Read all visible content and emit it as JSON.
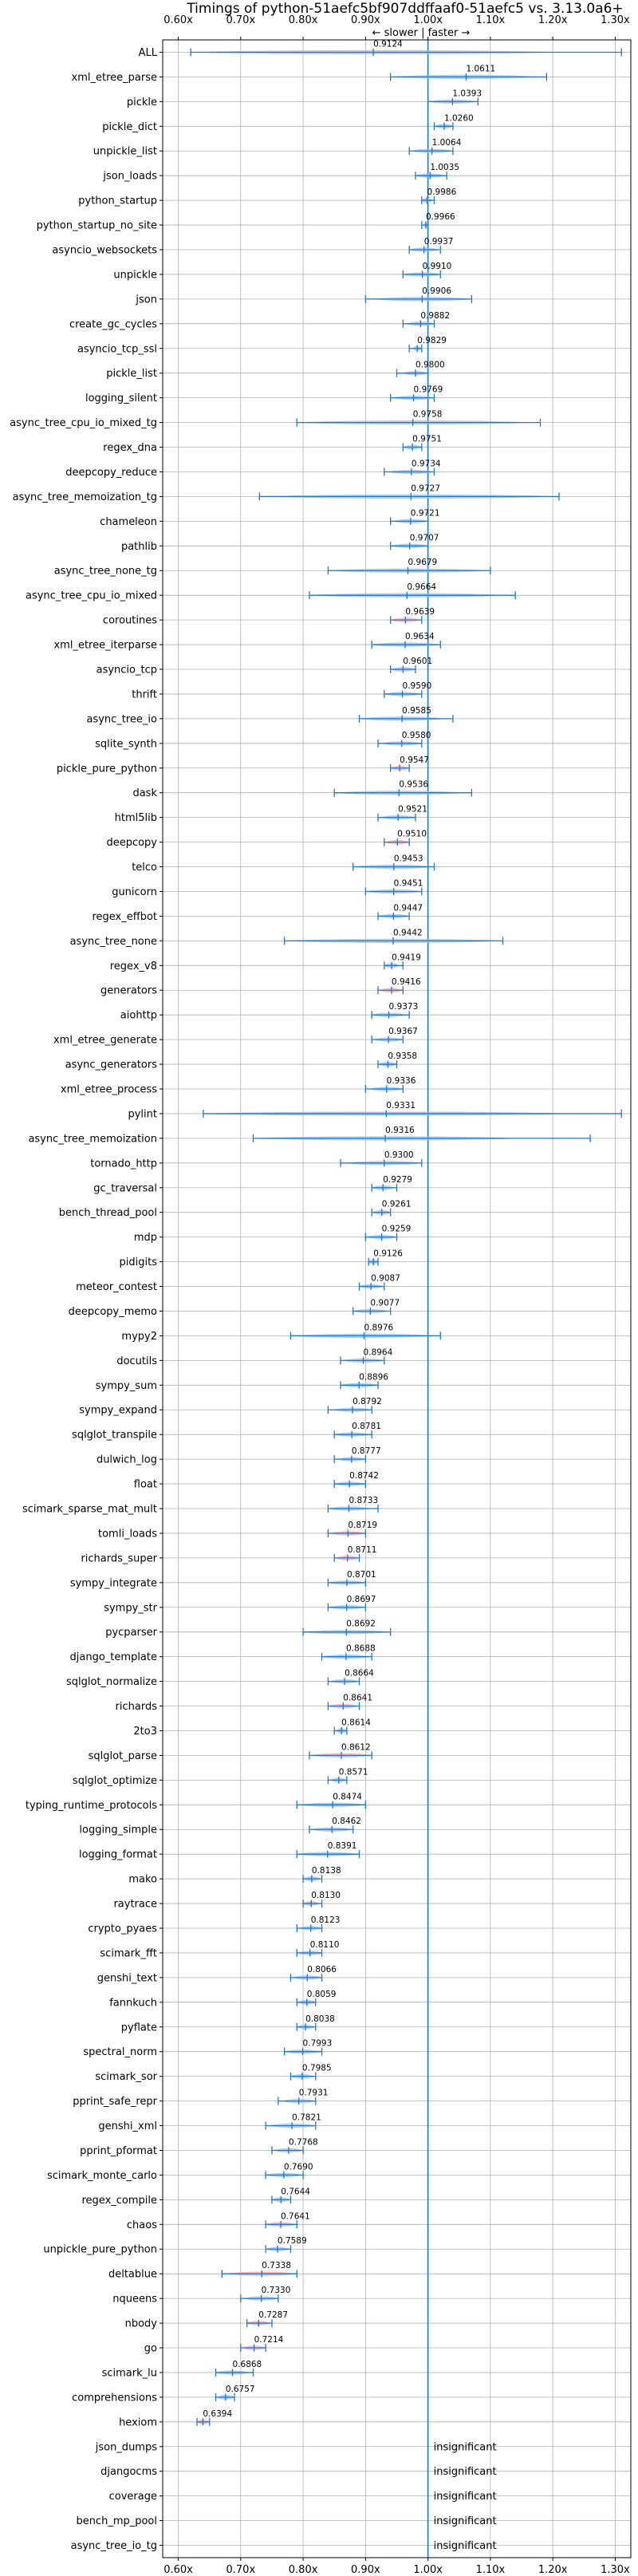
{
  "chart_data": {
    "type": "violin",
    "title": "Timings of python-51aefc5bf907ddffaaf0-51aefc5 vs. 3.13.0a6+",
    "subtitle": "← slower | faster →",
    "xlim": [
      0.575,
      1.325
    ],
    "x_ticks": [
      0.6,
      0.7,
      0.8,
      0.9,
      1.0,
      1.1,
      1.2,
      1.3
    ],
    "x_tick_labels": [
      "0.60x",
      "0.70x",
      "0.80x",
      "0.90x",
      "1.00x",
      "1.10x",
      "1.20x",
      "1.30x"
    ],
    "reference_line": 1.0,
    "grid": true,
    "colors": {
      "normal": "#9bc2e6",
      "regression": "#f4a5a5",
      "line": "#1f77d4"
    },
    "insignificant_label": "insignificant",
    "benchmarks": [
      {
        "name": "ALL",
        "value": 0.9124,
        "label": "0.9124",
        "lo": 0.62,
        "hi": 1.31,
        "regression": false
      },
      {
        "name": "xml_etree_parse",
        "value": 1.0611,
        "label": "1.0611",
        "lo": 0.94,
        "hi": 1.19,
        "regression": false
      },
      {
        "name": "pickle",
        "value": 1.0393,
        "label": "1.0393",
        "lo": 1.0,
        "hi": 1.08,
        "regression": false
      },
      {
        "name": "pickle_dict",
        "value": 1.026,
        "label": "1.0260",
        "lo": 1.01,
        "hi": 1.04,
        "regression": false
      },
      {
        "name": "unpickle_list",
        "value": 1.0064,
        "label": "1.0064",
        "lo": 0.97,
        "hi": 1.04,
        "regression": false
      },
      {
        "name": "json_loads",
        "value": 1.0035,
        "label": "1.0035",
        "lo": 0.98,
        "hi": 1.03,
        "regression": false
      },
      {
        "name": "python_startup",
        "value": 0.9986,
        "label": "0.9986",
        "lo": 0.99,
        "hi": 1.01,
        "regression": false
      },
      {
        "name": "python_startup_no_site",
        "value": 0.9966,
        "label": "0.9966",
        "lo": 0.99,
        "hi": 1.0,
        "regression": false
      },
      {
        "name": "asyncio_websockets",
        "value": 0.9937,
        "label": "0.9937",
        "lo": 0.97,
        "hi": 1.02,
        "regression": false
      },
      {
        "name": "unpickle",
        "value": 0.991,
        "label": "0.9910",
        "lo": 0.96,
        "hi": 1.02,
        "regression": false
      },
      {
        "name": "json",
        "value": 0.9906,
        "label": "0.9906",
        "lo": 0.9,
        "hi": 1.07,
        "regression": false
      },
      {
        "name": "create_gc_cycles",
        "value": 0.9882,
        "label": "0.9882",
        "lo": 0.96,
        "hi": 1.01,
        "regression": false
      },
      {
        "name": "asyncio_tcp_ssl",
        "value": 0.9829,
        "label": "0.9829",
        "lo": 0.97,
        "hi": 0.99,
        "regression": false
      },
      {
        "name": "pickle_list",
        "value": 0.98,
        "label": "0.9800",
        "lo": 0.95,
        "hi": 1.0,
        "regression": false
      },
      {
        "name": "logging_silent",
        "value": 0.9769,
        "label": "0.9769",
        "lo": 0.94,
        "hi": 1.01,
        "regression": false
      },
      {
        "name": "async_tree_cpu_io_mixed_tg",
        "value": 0.9758,
        "label": "0.9758",
        "lo": 0.79,
        "hi": 1.18,
        "regression": false
      },
      {
        "name": "regex_dna",
        "value": 0.9751,
        "label": "0.9751",
        "lo": 0.96,
        "hi": 0.99,
        "regression": false
      },
      {
        "name": "deepcopy_reduce",
        "value": 0.9734,
        "label": "0.9734",
        "lo": 0.93,
        "hi": 1.01,
        "regression": false
      },
      {
        "name": "async_tree_memoization_tg",
        "value": 0.9727,
        "label": "0.9727",
        "lo": 0.73,
        "hi": 1.21,
        "regression": false
      },
      {
        "name": "chameleon",
        "value": 0.9721,
        "label": "0.9721",
        "lo": 0.94,
        "hi": 1.0,
        "regression": false
      },
      {
        "name": "pathlib",
        "value": 0.9707,
        "label": "0.9707",
        "lo": 0.94,
        "hi": 1.0,
        "regression": false
      },
      {
        "name": "async_tree_none_tg",
        "value": 0.9679,
        "label": "0.9679",
        "lo": 0.84,
        "hi": 1.1,
        "regression": false
      },
      {
        "name": "async_tree_cpu_io_mixed",
        "value": 0.9664,
        "label": "0.9664",
        "lo": 0.81,
        "hi": 1.14,
        "regression": false
      },
      {
        "name": "coroutines",
        "value": 0.9639,
        "label": "0.9639",
        "lo": 0.94,
        "hi": 0.99,
        "regression": true
      },
      {
        "name": "xml_etree_iterparse",
        "value": 0.9634,
        "label": "0.9634",
        "lo": 0.91,
        "hi": 1.02,
        "regression": false
      },
      {
        "name": "asyncio_tcp",
        "value": 0.9601,
        "label": "0.9601",
        "lo": 0.94,
        "hi": 0.98,
        "regression": false
      },
      {
        "name": "thrift",
        "value": 0.959,
        "label": "0.9590",
        "lo": 0.93,
        "hi": 0.99,
        "regression": false
      },
      {
        "name": "async_tree_io",
        "value": 0.9585,
        "label": "0.9585",
        "lo": 0.89,
        "hi": 1.04,
        "regression": false
      },
      {
        "name": "sqlite_synth",
        "value": 0.958,
        "label": "0.9580",
        "lo": 0.92,
        "hi": 0.99,
        "regression": false
      },
      {
        "name": "pickle_pure_python",
        "value": 0.9547,
        "label": "0.9547",
        "lo": 0.94,
        "hi": 0.97,
        "regression": true
      },
      {
        "name": "dask",
        "value": 0.9536,
        "label": "0.9536",
        "lo": 0.85,
        "hi": 1.07,
        "regression": false
      },
      {
        "name": "html5lib",
        "value": 0.9521,
        "label": "0.9521",
        "lo": 0.92,
        "hi": 0.98,
        "regression": false
      },
      {
        "name": "deepcopy",
        "value": 0.951,
        "label": "0.9510",
        "lo": 0.93,
        "hi": 0.97,
        "regression": true
      },
      {
        "name": "telco",
        "value": 0.9453,
        "label": "0.9453",
        "lo": 0.88,
        "hi": 1.01,
        "regression": false
      },
      {
        "name": "gunicorn",
        "value": 0.9451,
        "label": "0.9451",
        "lo": 0.9,
        "hi": 0.99,
        "regression": false
      },
      {
        "name": "regex_effbot",
        "value": 0.9447,
        "label": "0.9447",
        "lo": 0.92,
        "hi": 0.97,
        "regression": false
      },
      {
        "name": "async_tree_none",
        "value": 0.9442,
        "label": "0.9442",
        "lo": 0.77,
        "hi": 1.12,
        "regression": false
      },
      {
        "name": "regex_v8",
        "value": 0.9419,
        "label": "0.9419",
        "lo": 0.93,
        "hi": 0.96,
        "regression": false
      },
      {
        "name": "generators",
        "value": 0.9416,
        "label": "0.9416",
        "lo": 0.92,
        "hi": 0.96,
        "regression": true
      },
      {
        "name": "aiohttp",
        "value": 0.9373,
        "label": "0.9373",
        "lo": 0.91,
        "hi": 0.97,
        "regression": false
      },
      {
        "name": "xml_etree_generate",
        "value": 0.9367,
        "label": "0.9367",
        "lo": 0.91,
        "hi": 0.96,
        "regression": false
      },
      {
        "name": "async_generators",
        "value": 0.9358,
        "label": "0.9358",
        "lo": 0.92,
        "hi": 0.95,
        "regression": false
      },
      {
        "name": "xml_etree_process",
        "value": 0.9336,
        "label": "0.9336",
        "lo": 0.9,
        "hi": 0.96,
        "regression": false
      },
      {
        "name": "pylint",
        "value": 0.9331,
        "label": "0.9331",
        "lo": 0.64,
        "hi": 1.31,
        "regression": false
      },
      {
        "name": "async_tree_memoization",
        "value": 0.9316,
        "label": "0.9316",
        "lo": 0.72,
        "hi": 1.26,
        "regression": false
      },
      {
        "name": "tornado_http",
        "value": 0.93,
        "label": "0.9300",
        "lo": 0.86,
        "hi": 0.99,
        "regression": false
      },
      {
        "name": "gc_traversal",
        "value": 0.9279,
        "label": "0.9279",
        "lo": 0.91,
        "hi": 0.95,
        "regression": false
      },
      {
        "name": "bench_thread_pool",
        "value": 0.9261,
        "label": "0.9261",
        "lo": 0.91,
        "hi": 0.94,
        "regression": false
      },
      {
        "name": "mdp",
        "value": 0.9259,
        "label": "0.9259",
        "lo": 0.9,
        "hi": 0.95,
        "regression": false
      },
      {
        "name": "pidigits",
        "value": 0.9126,
        "label": "0.9126",
        "lo": 0.905,
        "hi": 0.92,
        "regression": false
      },
      {
        "name": "meteor_contest",
        "value": 0.9087,
        "label": "0.9087",
        "lo": 0.89,
        "hi": 0.93,
        "regression": false
      },
      {
        "name": "deepcopy_memo",
        "value": 0.9077,
        "label": "0.9077",
        "lo": 0.88,
        "hi": 0.94,
        "regression": false
      },
      {
        "name": "mypy2",
        "value": 0.8976,
        "label": "0.8976",
        "lo": 0.78,
        "hi": 1.02,
        "regression": false
      },
      {
        "name": "docutils",
        "value": 0.8964,
        "label": "0.8964",
        "lo": 0.86,
        "hi": 0.93,
        "regression": false
      },
      {
        "name": "sympy_sum",
        "value": 0.8896,
        "label": "0.8896",
        "lo": 0.86,
        "hi": 0.92,
        "regression": false
      },
      {
        "name": "sympy_expand",
        "value": 0.8792,
        "label": "0.8792",
        "lo": 0.84,
        "hi": 0.91,
        "regression": false
      },
      {
        "name": "sqlglot_transpile",
        "value": 0.8781,
        "label": "0.8781",
        "lo": 0.85,
        "hi": 0.91,
        "regression": false
      },
      {
        "name": "dulwich_log",
        "value": 0.8777,
        "label": "0.8777",
        "lo": 0.85,
        "hi": 0.9,
        "regression": false
      },
      {
        "name": "float",
        "value": 0.8742,
        "label": "0.8742",
        "lo": 0.85,
        "hi": 0.9,
        "regression": false
      },
      {
        "name": "scimark_sparse_mat_mult",
        "value": 0.8733,
        "label": "0.8733",
        "lo": 0.84,
        "hi": 0.92,
        "regression": false
      },
      {
        "name": "tomli_loads",
        "value": 0.8719,
        "label": "0.8719",
        "lo": 0.84,
        "hi": 0.9,
        "regression": true
      },
      {
        "name": "richards_super",
        "value": 0.8711,
        "label": "0.8711",
        "lo": 0.85,
        "hi": 0.89,
        "regression": true
      },
      {
        "name": "sympy_integrate",
        "value": 0.8701,
        "label": "0.8701",
        "lo": 0.84,
        "hi": 0.9,
        "regression": false
      },
      {
        "name": "sympy_str",
        "value": 0.8697,
        "label": "0.8697",
        "lo": 0.84,
        "hi": 0.9,
        "regression": false
      },
      {
        "name": "pycparser",
        "value": 0.8692,
        "label": "0.8692",
        "lo": 0.8,
        "hi": 0.94,
        "regression": false
      },
      {
        "name": "django_template",
        "value": 0.8688,
        "label": "0.8688",
        "lo": 0.83,
        "hi": 0.91,
        "regression": false
      },
      {
        "name": "sqlglot_normalize",
        "value": 0.8664,
        "label": "0.8664",
        "lo": 0.84,
        "hi": 0.89,
        "regression": false
      },
      {
        "name": "richards",
        "value": 0.8641,
        "label": "0.8641",
        "lo": 0.84,
        "hi": 0.89,
        "regression": true
      },
      {
        "name": "2to3",
        "value": 0.8614,
        "label": "0.8614",
        "lo": 0.85,
        "hi": 0.87,
        "regression": false
      },
      {
        "name": "sqlglot_parse",
        "value": 0.8612,
        "label": "0.8612",
        "lo": 0.81,
        "hi": 0.91,
        "regression": true
      },
      {
        "name": "sqlglot_optimize",
        "value": 0.8571,
        "label": "0.8571",
        "lo": 0.84,
        "hi": 0.87,
        "regression": false
      },
      {
        "name": "typing_runtime_protocols",
        "value": 0.8474,
        "label": "0.8474",
        "lo": 0.79,
        "hi": 0.9,
        "regression": false
      },
      {
        "name": "logging_simple",
        "value": 0.8462,
        "label": "0.8462",
        "lo": 0.81,
        "hi": 0.88,
        "regression": false
      },
      {
        "name": "logging_format",
        "value": 0.8391,
        "label": "0.8391",
        "lo": 0.79,
        "hi": 0.89,
        "regression": false
      },
      {
        "name": "mako",
        "value": 0.8138,
        "label": "0.8138",
        "lo": 0.8,
        "hi": 0.83,
        "regression": false
      },
      {
        "name": "raytrace",
        "value": 0.813,
        "label": "0.8130",
        "lo": 0.8,
        "hi": 0.83,
        "regression": true
      },
      {
        "name": "crypto_pyaes",
        "value": 0.8123,
        "label": "0.8123",
        "lo": 0.79,
        "hi": 0.83,
        "regression": false
      },
      {
        "name": "scimark_fft",
        "value": 0.811,
        "label": "0.8110",
        "lo": 0.79,
        "hi": 0.83,
        "regression": false
      },
      {
        "name": "genshi_text",
        "value": 0.8066,
        "label": "0.8066",
        "lo": 0.78,
        "hi": 0.83,
        "regression": false
      },
      {
        "name": "fannkuch",
        "value": 0.8059,
        "label": "0.8059",
        "lo": 0.79,
        "hi": 0.82,
        "regression": false
      },
      {
        "name": "pyflate",
        "value": 0.8038,
        "label": "0.8038",
        "lo": 0.79,
        "hi": 0.82,
        "regression": false
      },
      {
        "name": "spectral_norm",
        "value": 0.7993,
        "label": "0.7993",
        "lo": 0.77,
        "hi": 0.83,
        "regression": false
      },
      {
        "name": "scimark_sor",
        "value": 0.7985,
        "label": "0.7985",
        "lo": 0.78,
        "hi": 0.82,
        "regression": false
      },
      {
        "name": "pprint_safe_repr",
        "value": 0.7931,
        "label": "0.7931",
        "lo": 0.76,
        "hi": 0.82,
        "regression": false
      },
      {
        "name": "genshi_xml",
        "value": 0.7821,
        "label": "0.7821",
        "lo": 0.74,
        "hi": 0.82,
        "regression": false
      },
      {
        "name": "pprint_pformat",
        "value": 0.7768,
        "label": "0.7768",
        "lo": 0.75,
        "hi": 0.8,
        "regression": false
      },
      {
        "name": "scimark_monte_carlo",
        "value": 0.769,
        "label": "0.7690",
        "lo": 0.74,
        "hi": 0.8,
        "regression": false
      },
      {
        "name": "regex_compile",
        "value": 0.7644,
        "label": "0.7644",
        "lo": 0.75,
        "hi": 0.78,
        "regression": false
      },
      {
        "name": "chaos",
        "value": 0.7641,
        "label": "0.7641",
        "lo": 0.74,
        "hi": 0.79,
        "regression": true
      },
      {
        "name": "unpickle_pure_python",
        "value": 0.7589,
        "label": "0.7589",
        "lo": 0.74,
        "hi": 0.78,
        "regression": false
      },
      {
        "name": "deltablue",
        "value": 0.7338,
        "label": "0.7338",
        "lo": 0.67,
        "hi": 0.79,
        "regression": true
      },
      {
        "name": "nqueens",
        "value": 0.733,
        "label": "0.7330",
        "lo": 0.7,
        "hi": 0.76,
        "regression": false
      },
      {
        "name": "nbody",
        "value": 0.7287,
        "label": "0.7287",
        "lo": 0.71,
        "hi": 0.75,
        "regression": true
      },
      {
        "name": "go",
        "value": 0.7214,
        "label": "0.7214",
        "lo": 0.7,
        "hi": 0.74,
        "regression": true
      },
      {
        "name": "scimark_lu",
        "value": 0.6868,
        "label": "0.6868",
        "lo": 0.66,
        "hi": 0.72,
        "regression": false
      },
      {
        "name": "comprehensions",
        "value": 0.6757,
        "label": "0.6757",
        "lo": 0.66,
        "hi": 0.69,
        "regression": false
      },
      {
        "name": "hexiom",
        "value": 0.6394,
        "label": "0.6394",
        "lo": 0.63,
        "hi": 0.65,
        "regression": true
      }
    ],
    "insignificant": [
      "json_dumps",
      "djangocms",
      "coverage",
      "bench_mp_pool",
      "async_tree_io_tg"
    ]
  }
}
